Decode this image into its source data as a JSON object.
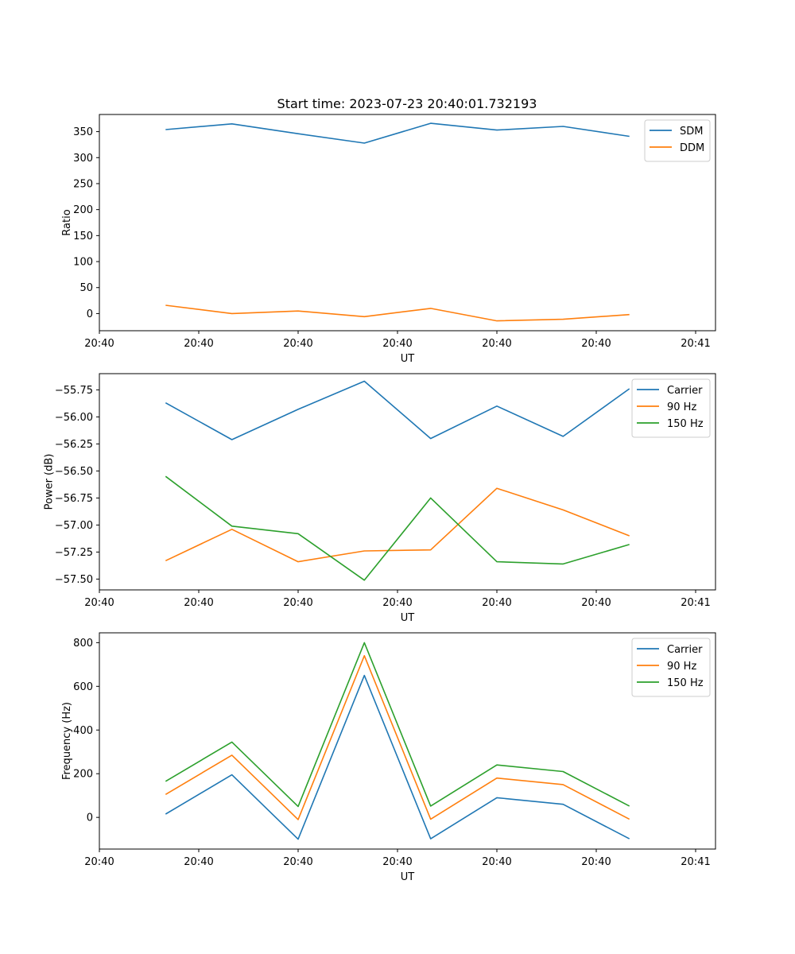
{
  "figure_title": "Start time: 2023-07-23 20:40:01.732193",
  "chart_data": [
    {
      "type": "line",
      "xlabel": "UT",
      "ylabel": "Ratio",
      "xlim": [
        0,
        9.3
      ],
      "x": [
        1,
        2,
        3,
        4,
        5,
        6,
        7,
        8
      ],
      "xticks": [
        0,
        1.5,
        3,
        4.5,
        6,
        7.5,
        9
      ],
      "xtick_labels": [
        "20:40",
        "20:40",
        "20:40",
        "20:40",
        "20:40",
        "20:40",
        "20:41"
      ],
      "ylim": [
        -33,
        383
      ],
      "yticks": [
        0,
        50,
        100,
        150,
        200,
        250,
        300,
        350
      ],
      "ytick_labels": [
        "0",
        "50",
        "100",
        "150",
        "200",
        "250",
        "300",
        "350"
      ],
      "legend_position": "top-right",
      "series": [
        {
          "name": "SDM",
          "color": "#1f77b4",
          "values": [
            354,
            365,
            346,
            328,
            366,
            353,
            360,
            341
          ]
        },
        {
          "name": "DDM",
          "color": "#ff7f0e",
          "values": [
            16,
            0,
            5,
            -6,
            10,
            -14,
            -11,
            -2
          ]
        }
      ]
    },
    {
      "type": "line",
      "xlabel": "UT",
      "ylabel": "Power (dB)",
      "xlim": [
        0,
        9.3
      ],
      "x": [
        1,
        2,
        3,
        4,
        5,
        6,
        7,
        8
      ],
      "xticks": [
        0,
        1.5,
        3,
        4.5,
        6,
        7.5,
        9
      ],
      "xtick_labels": [
        "20:40",
        "20:40",
        "20:40",
        "20:40",
        "20:40",
        "20:40",
        "20:41"
      ],
      "ylim": [
        -57.6,
        -55.6
      ],
      "yticks": [
        -57.5,
        -57.25,
        -57.0,
        -56.75,
        -56.5,
        -56.25,
        -56.0,
        -55.75
      ],
      "ytick_labels": [
        "−57.50",
        "−57.25",
        "−57.00",
        "−56.75",
        "−56.50",
        "−56.25",
        "−56.00",
        "−55.75"
      ],
      "legend_position": "top-right",
      "series": [
        {
          "name": "Carrier",
          "color": "#1f77b4",
          "values": [
            -55.87,
            -56.21,
            -55.93,
            -55.67,
            -56.2,
            -55.9,
            -56.18,
            -55.74
          ]
        },
        {
          "name": "90 Hz",
          "color": "#ff7f0e",
          "values": [
            -57.33,
            -57.04,
            -57.34,
            -57.24,
            -57.23,
            -56.66,
            -56.86,
            -57.1
          ]
        },
        {
          "name": "150 Hz",
          "color": "#2ca02c",
          "values": [
            -56.55,
            -57.01,
            -57.08,
            -57.51,
            -56.75,
            -57.34,
            -57.36,
            -57.18
          ]
        }
      ]
    },
    {
      "type": "line",
      "xlabel": "UT",
      "ylabel": "Frequency (Hz)",
      "xlim": [
        0,
        9.3
      ],
      "x": [
        1,
        2,
        3,
        4,
        5,
        6,
        7,
        8
      ],
      "xticks": [
        0,
        1.5,
        3,
        4.5,
        6,
        7.5,
        9
      ],
      "xtick_labels": [
        "20:40",
        "20:40",
        "20:40",
        "20:40",
        "20:40",
        "20:40",
        "20:41"
      ],
      "ylim": [
        -145,
        845
      ],
      "yticks": [
        0,
        200,
        400,
        600,
        800
      ],
      "ytick_labels": [
        "0",
        "200",
        "400",
        "600",
        "800"
      ],
      "legend_position": "top-right",
      "series": [
        {
          "name": "Carrier",
          "color": "#1f77b4",
          "values": [
            15,
            195,
            -100,
            650,
            -98,
            90,
            60,
            -98
          ]
        },
        {
          "name": "90 Hz",
          "color": "#ff7f0e",
          "values": [
            105,
            285,
            -10,
            740,
            -8,
            180,
            150,
            -8
          ]
        },
        {
          "name": "150 Hz",
          "color": "#2ca02c",
          "values": [
            165,
            345,
            50,
            800,
            52,
            240,
            210,
            52
          ]
        }
      ]
    }
  ]
}
